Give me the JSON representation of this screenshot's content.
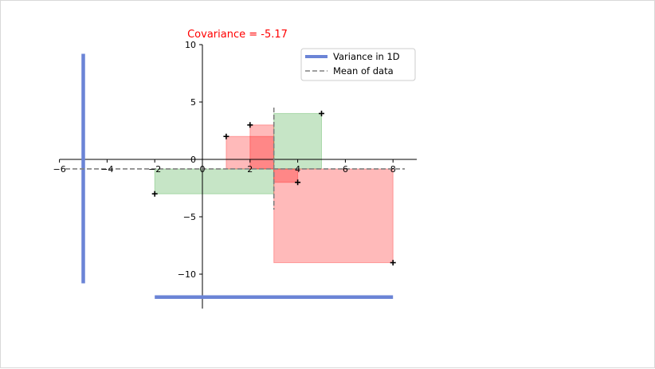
{
  "chart_data": {
    "type": "scatter",
    "title": "Covariance = -5.17",
    "title_color": "#ff0000",
    "xlabel": "",
    "ylabel": "",
    "xlim": [
      -6,
      9
    ],
    "ylim": [
      -13,
      10
    ],
    "x_ticks": [
      -6,
      -4,
      -2,
      0,
      2,
      4,
      6,
      8
    ],
    "y_ticks": [
      10,
      5,
      0,
      -5,
      -10
    ],
    "x_tick_labels": [
      "−6",
      "−4",
      "−2",
      "0",
      "2",
      "4",
      "6",
      "8"
    ],
    "y_tick_labels": [
      "10",
      "5",
      "0",
      "−5",
      "−10"
    ],
    "grid": false,
    "legend_position": "top-right",
    "points": [
      {
        "x": -2,
        "y": -3
      },
      {
        "x": 1,
        "y": 2
      },
      {
        "x": 2,
        "y": 3
      },
      {
        "x": 4,
        "y": -2
      },
      {
        "x": 5,
        "y": 4
      },
      {
        "x": 8,
        "y": -9
      }
    ],
    "mean": {
      "x": 3,
      "y": -0.83
    },
    "positive_color": "#2ca02c",
    "negative_color": "#ff0000",
    "series": [
      {
        "name": "Variance in 1D",
        "style": "solid",
        "color": "#6b84d6",
        "segments": [
          {
            "x1": -5,
            "y1": -10.8,
            "x2": -5,
            "y2": 9.2
          },
          {
            "x1": -2,
            "y1": -12,
            "x2": 8,
            "y2": -12
          }
        ]
      },
      {
        "name": "Mean of data",
        "style": "dashed",
        "color": "#808080"
      }
    ]
  }
}
